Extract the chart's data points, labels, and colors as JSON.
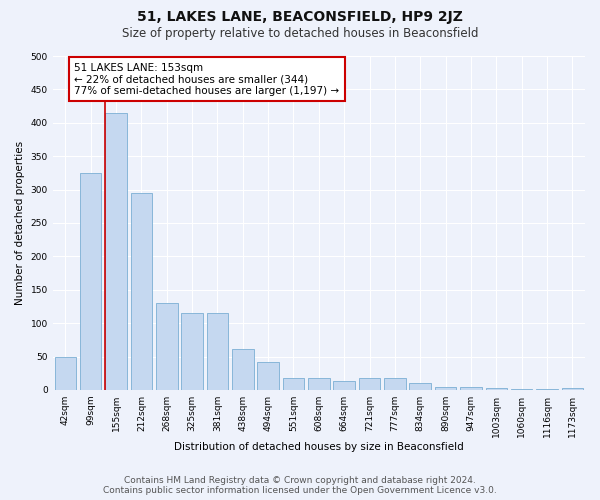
{
  "title": "51, LAKES LANE, BEACONSFIELD, HP9 2JZ",
  "subtitle": "Size of property relative to detached houses in Beaconsfield",
  "xlabel": "Distribution of detached houses by size in Beaconsfield",
  "ylabel": "Number of detached properties",
  "footer_line1": "Contains HM Land Registry data © Crown copyright and database right 2024.",
  "footer_line2": "Contains public sector information licensed under the Open Government Licence v3.0.",
  "categories": [
    "42sqm",
    "99sqm",
    "155sqm",
    "212sqm",
    "268sqm",
    "325sqm",
    "381sqm",
    "438sqm",
    "494sqm",
    "551sqm",
    "608sqm",
    "664sqm",
    "721sqm",
    "777sqm",
    "834sqm",
    "890sqm",
    "947sqm",
    "1003sqm",
    "1060sqm",
    "1116sqm",
    "1173sqm"
  ],
  "values": [
    50,
    325,
    415,
    295,
    130,
    115,
    115,
    62,
    42,
    18,
    18,
    14,
    18,
    18,
    10,
    5,
    5,
    3,
    2,
    2,
    3
  ],
  "bar_color": "#c5d8f0",
  "bar_edge_color": "#7bafd4",
  "highlight_index": 2,
  "highlight_line_color": "#cc0000",
  "annotation_text": "51 LAKES LANE: 153sqm\n← 22% of detached houses are smaller (344)\n77% of semi-detached houses are larger (1,197) →",
  "annotation_box_color": "#ffffff",
  "annotation_box_edge_color": "#cc0000",
  "ylim": [
    0,
    500
  ],
  "yticks": [
    0,
    50,
    100,
    150,
    200,
    250,
    300,
    350,
    400,
    450,
    500
  ],
  "bg_color": "#eef2fb",
  "plot_bg_color": "#eef2fb",
  "grid_color": "#ffffff",
  "title_fontsize": 10,
  "subtitle_fontsize": 8.5,
  "axis_label_fontsize": 7.5,
  "tick_fontsize": 6.5,
  "annotation_fontsize": 7.5,
  "footer_fontsize": 6.5
}
